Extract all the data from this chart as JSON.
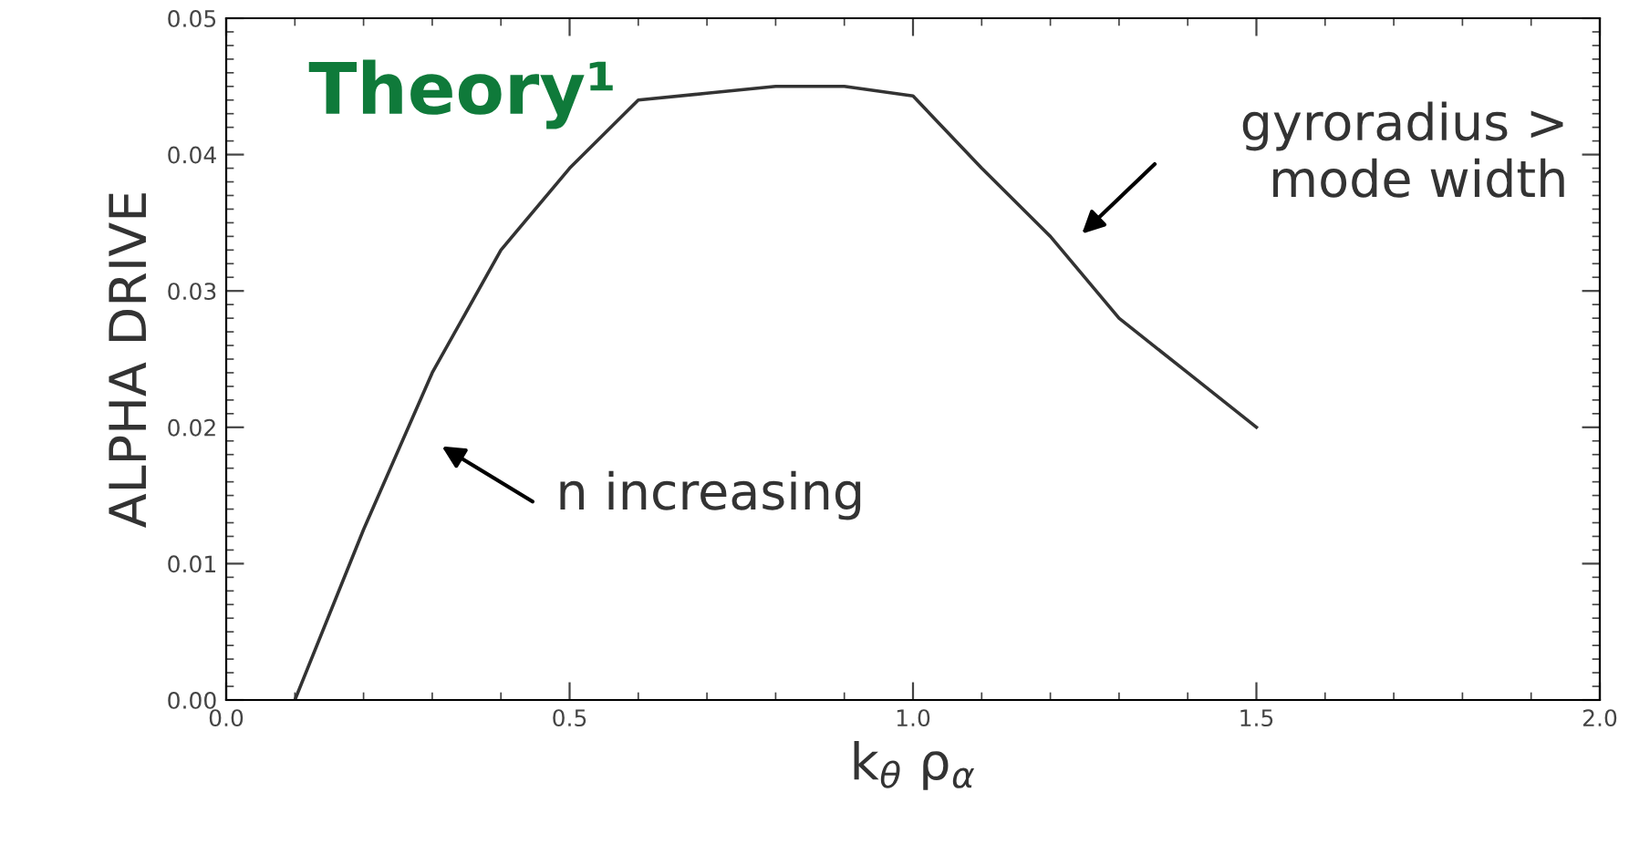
{
  "chart_data": {
    "type": "line",
    "xlabel": "k$_{θ}$ ρ$_{α}$",
    "ylabel": "ALPHA DRIVE",
    "x": [
      0.1,
      0.2,
      0.3,
      0.4,
      0.5,
      0.6,
      0.7,
      0.8,
      0.9,
      1.0,
      1.1,
      1.2,
      1.3,
      1.4,
      1.5
    ],
    "series": [
      {
        "color": "#333333",
        "values": [
          0.0,
          0.0125,
          0.024,
          0.033,
          0.039,
          0.044,
          0.0445,
          0.045,
          0.045,
          0.0443,
          0.039,
          0.034,
          0.028,
          0.024,
          0.02
        ]
      }
    ],
    "xlim": [
      0.0,
      2.0
    ],
    "xticks": [
      {
        "value": 0.0,
        "label": "0.0"
      },
      {
        "value": 0.5,
        "label": "0.5"
      },
      {
        "value": 1.0,
        "label": "1.0"
      },
      {
        "value": 1.5,
        "label": "1.5"
      },
      {
        "value": 2.0,
        "label": "2.0"
      }
    ],
    "ylim": [
      0.0,
      0.05
    ],
    "yticks": [
      {
        "value": 0.0,
        "label": "0.00"
      },
      {
        "value": 0.01,
        "label": "0.01"
      },
      {
        "value": 0.02,
        "label": "0.02"
      },
      {
        "value": 0.03,
        "label": "0.03"
      },
      {
        "value": 0.04,
        "label": "0.04"
      },
      {
        "value": 0.05,
        "label": "0.05"
      }
    ],
    "annotations": [
      "Theory¹",
      "n increasing",
      "gyroradius >\nmode width"
    ],
    "grid": false,
    "legend": false,
    "marker": "none",
    "line_style": "solid"
  }
}
